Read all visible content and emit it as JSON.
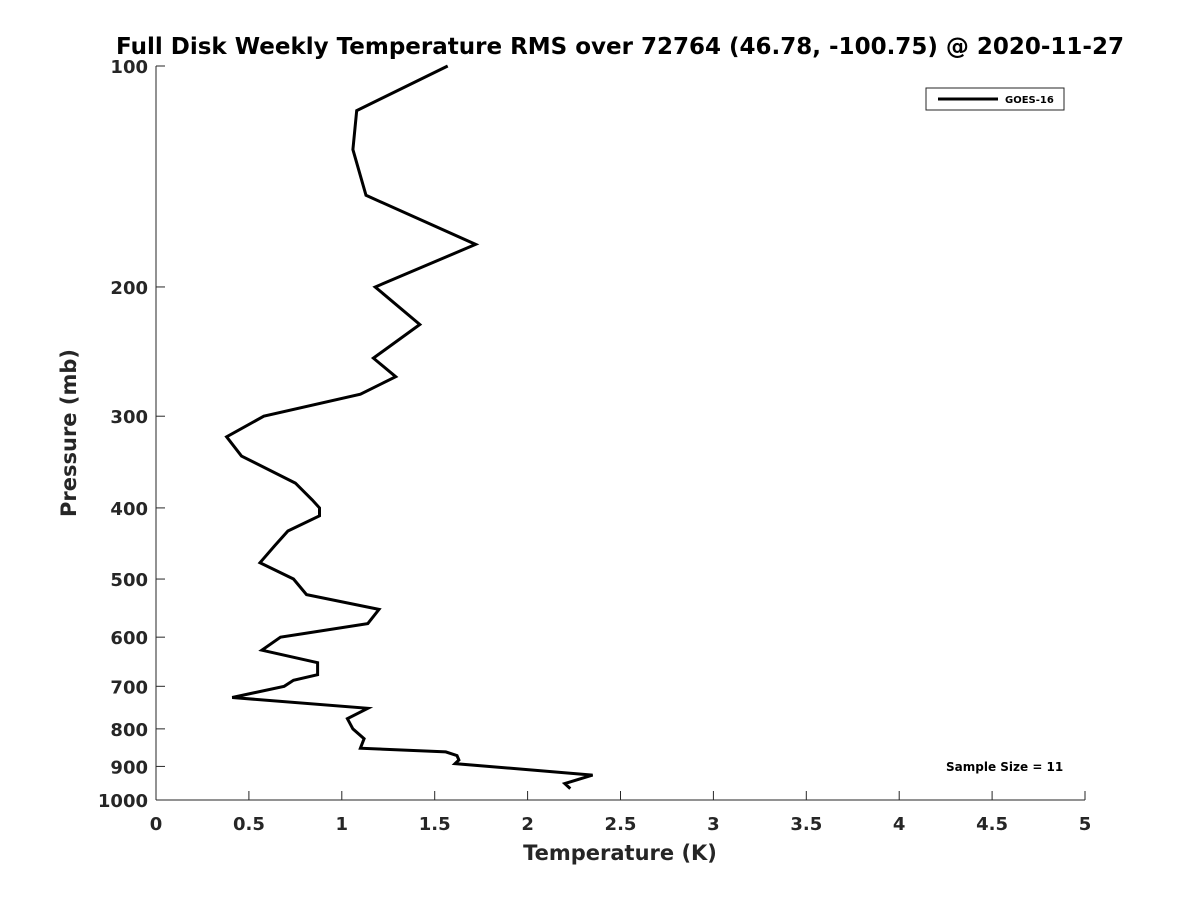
{
  "chart_data": {
    "type": "line",
    "title": "Full Disk Weekly Temperature RMS over 72764 (46.78, -100.75) @ 2020-11-27",
    "xlabel": "Temperature (K)",
    "ylabel": "Pressure (mb)",
    "xlim": [
      0,
      5
    ],
    "ylim": [
      100,
      1000
    ],
    "y_scale": "log",
    "y_reversed": true,
    "x_ticks": [
      "0",
      "0.5",
      "1",
      "1.5",
      "2",
      "2.5",
      "3",
      "3.5",
      "4",
      "4.5",
      "5"
    ],
    "y_ticks": [
      "100",
      "200",
      "300",
      "400",
      "500",
      "600",
      "700",
      "800",
      "900",
      "1000"
    ],
    "grid": false,
    "legend_position": "top-right",
    "annotation": "Sample Size = 11",
    "series": [
      {
        "name": "GOES-16",
        "color": "#000000",
        "x": [
          1.57,
          1.08,
          1.06,
          1.13,
          1.72,
          1.18,
          1.42,
          1.17,
          1.29,
          1.1,
          0.58,
          0.38,
          0.46,
          0.75,
          0.84,
          0.88,
          0.88,
          0.71,
          0.64,
          0.56,
          0.74,
          0.81,
          1.2,
          1.14,
          0.67,
          0.57,
          0.87,
          0.87,
          0.74,
          0.69,
          0.41,
          1.14,
          1.03,
          1.06,
          1.12,
          1.1,
          1.56,
          1.62,
          1.63,
          1.61,
          2.35,
          2.2,
          2.23
        ],
        "y": [
          100,
          115,
          130,
          150,
          175,
          200,
          225,
          250,
          265,
          280,
          300,
          320,
          340,
          370,
          390,
          400,
          410,
          430,
          450,
          475,
          500,
          525,
          550,
          575,
          600,
          625,
          650,
          675,
          687,
          700,
          725,
          750,
          775,
          800,
          825,
          850,
          860,
          870,
          882,
          892,
          925,
          950,
          965
        ]
      }
    ]
  }
}
